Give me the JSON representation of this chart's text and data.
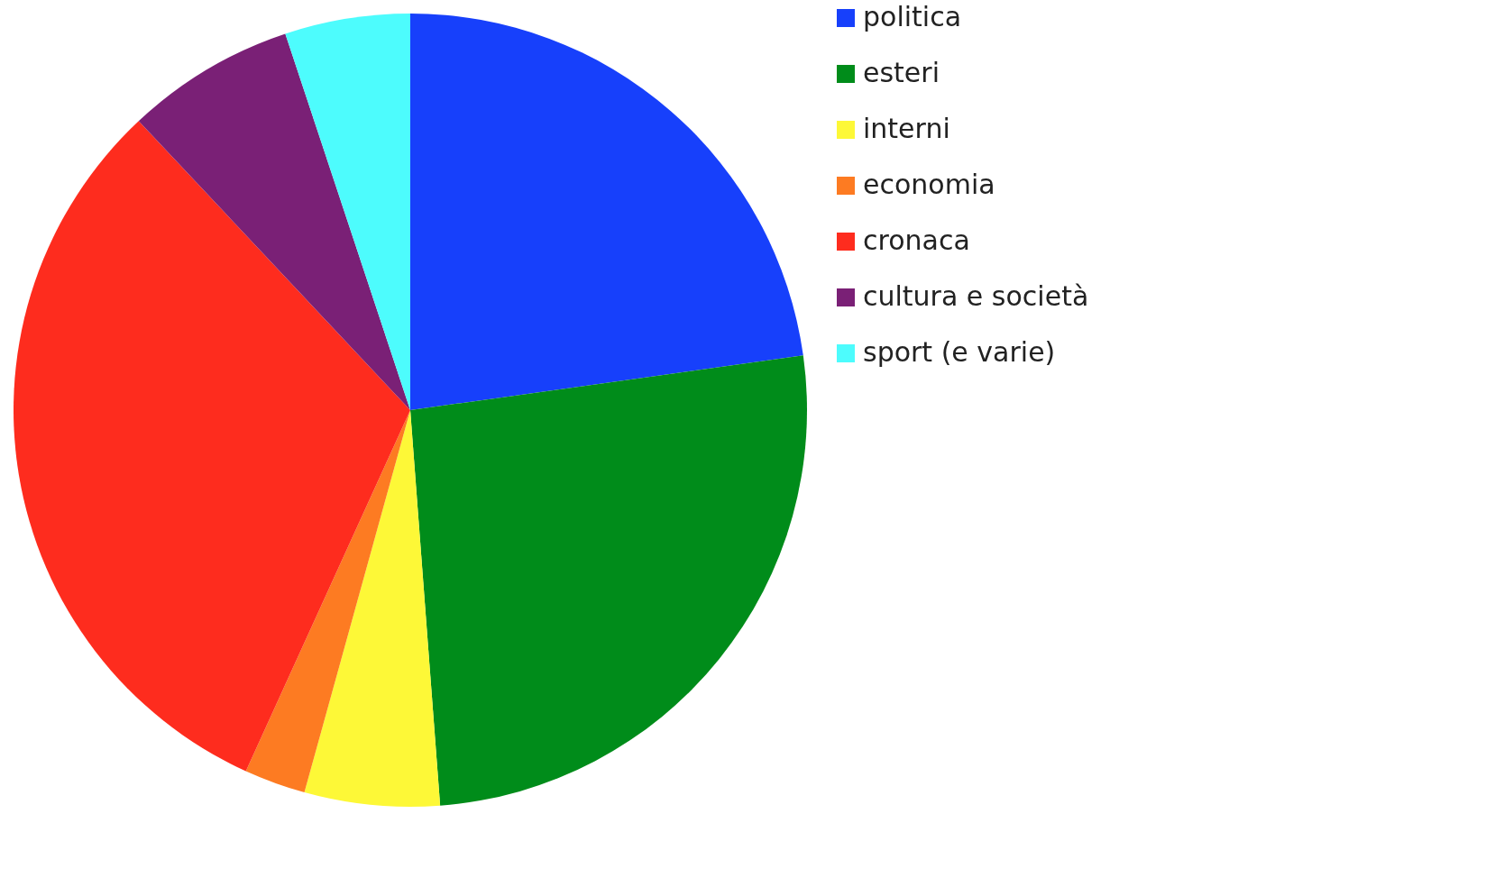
{
  "chart_data": {
    "type": "pie",
    "categories": [
      "politica",
      "esteri",
      "interni",
      "economia",
      "cronaca",
      "cultura e società",
      "sport (e varie)"
    ],
    "values": [
      22.8,
      26.0,
      5.5,
      2.5,
      31.2,
      6.9,
      5.1
    ],
    "colors": [
      "#1740fb",
      "#008c1a",
      "#fdf837",
      "#fd7b22",
      "#fe2c1e",
      "#7a2076",
      "#4dfcfd"
    ],
    "legend": "right"
  }
}
